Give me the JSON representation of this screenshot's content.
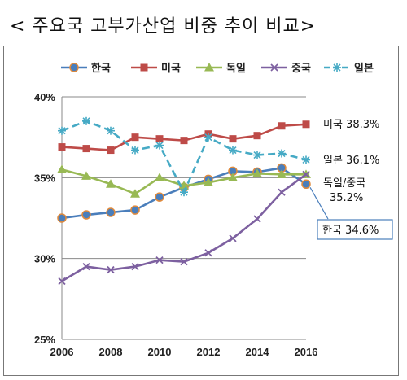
{
  "title": "< 주요국 고부가산업 비중 추이 비교>",
  "chart_data": {
    "type": "line",
    "x": [
      2006,
      2007,
      2008,
      2009,
      2010,
      2011,
      2012,
      2013,
      2014,
      2015,
      2016
    ],
    "xticks": [
      "2006",
      "2008",
      "2010",
      "2012",
      "2014",
      "2016"
    ],
    "yticks": [
      "25%",
      "30%",
      "35%",
      "40%"
    ],
    "ylim": [
      25,
      40
    ],
    "series": [
      {
        "name": "한국",
        "color": "#4a7ebb",
        "marker": "circle",
        "dash": false,
        "values": [
          32.5,
          32.7,
          32.85,
          33.0,
          33.8,
          34.4,
          34.9,
          35.4,
          35.35,
          35.6,
          34.6
        ]
      },
      {
        "name": "미국",
        "color": "#be4b48",
        "marker": "square",
        "dash": false,
        "values": [
          36.9,
          36.8,
          36.7,
          37.5,
          37.4,
          37.3,
          37.7,
          37.4,
          37.6,
          38.2,
          38.3
        ]
      },
      {
        "name": "독일",
        "color": "#98b954",
        "marker": "triangle",
        "dash": false,
        "values": [
          35.5,
          35.1,
          34.6,
          34.0,
          35.0,
          34.5,
          34.7,
          35.0,
          35.25,
          35.2,
          35.2
        ]
      },
      {
        "name": "중국",
        "color": "#7d60a0",
        "marker": "x",
        "dash": false,
        "values": [
          28.6,
          29.5,
          29.3,
          29.5,
          29.9,
          29.8,
          30.35,
          31.25,
          32.45,
          34.1,
          35.2
        ]
      },
      {
        "name": "일본",
        "color": "#46aac5",
        "marker": "star",
        "dash": true,
        "values": [
          37.9,
          38.5,
          37.9,
          36.7,
          37.0,
          34.1,
          37.5,
          36.7,
          36.4,
          36.5,
          36.1
        ]
      }
    ],
    "annotations": {
      "us": "미국 38.3%",
      "jp": "일본 36.1%",
      "de_cn_line1": "독일/중국",
      "de_cn_line2": "35.2%",
      "kr": "한국 34.6%"
    }
  }
}
